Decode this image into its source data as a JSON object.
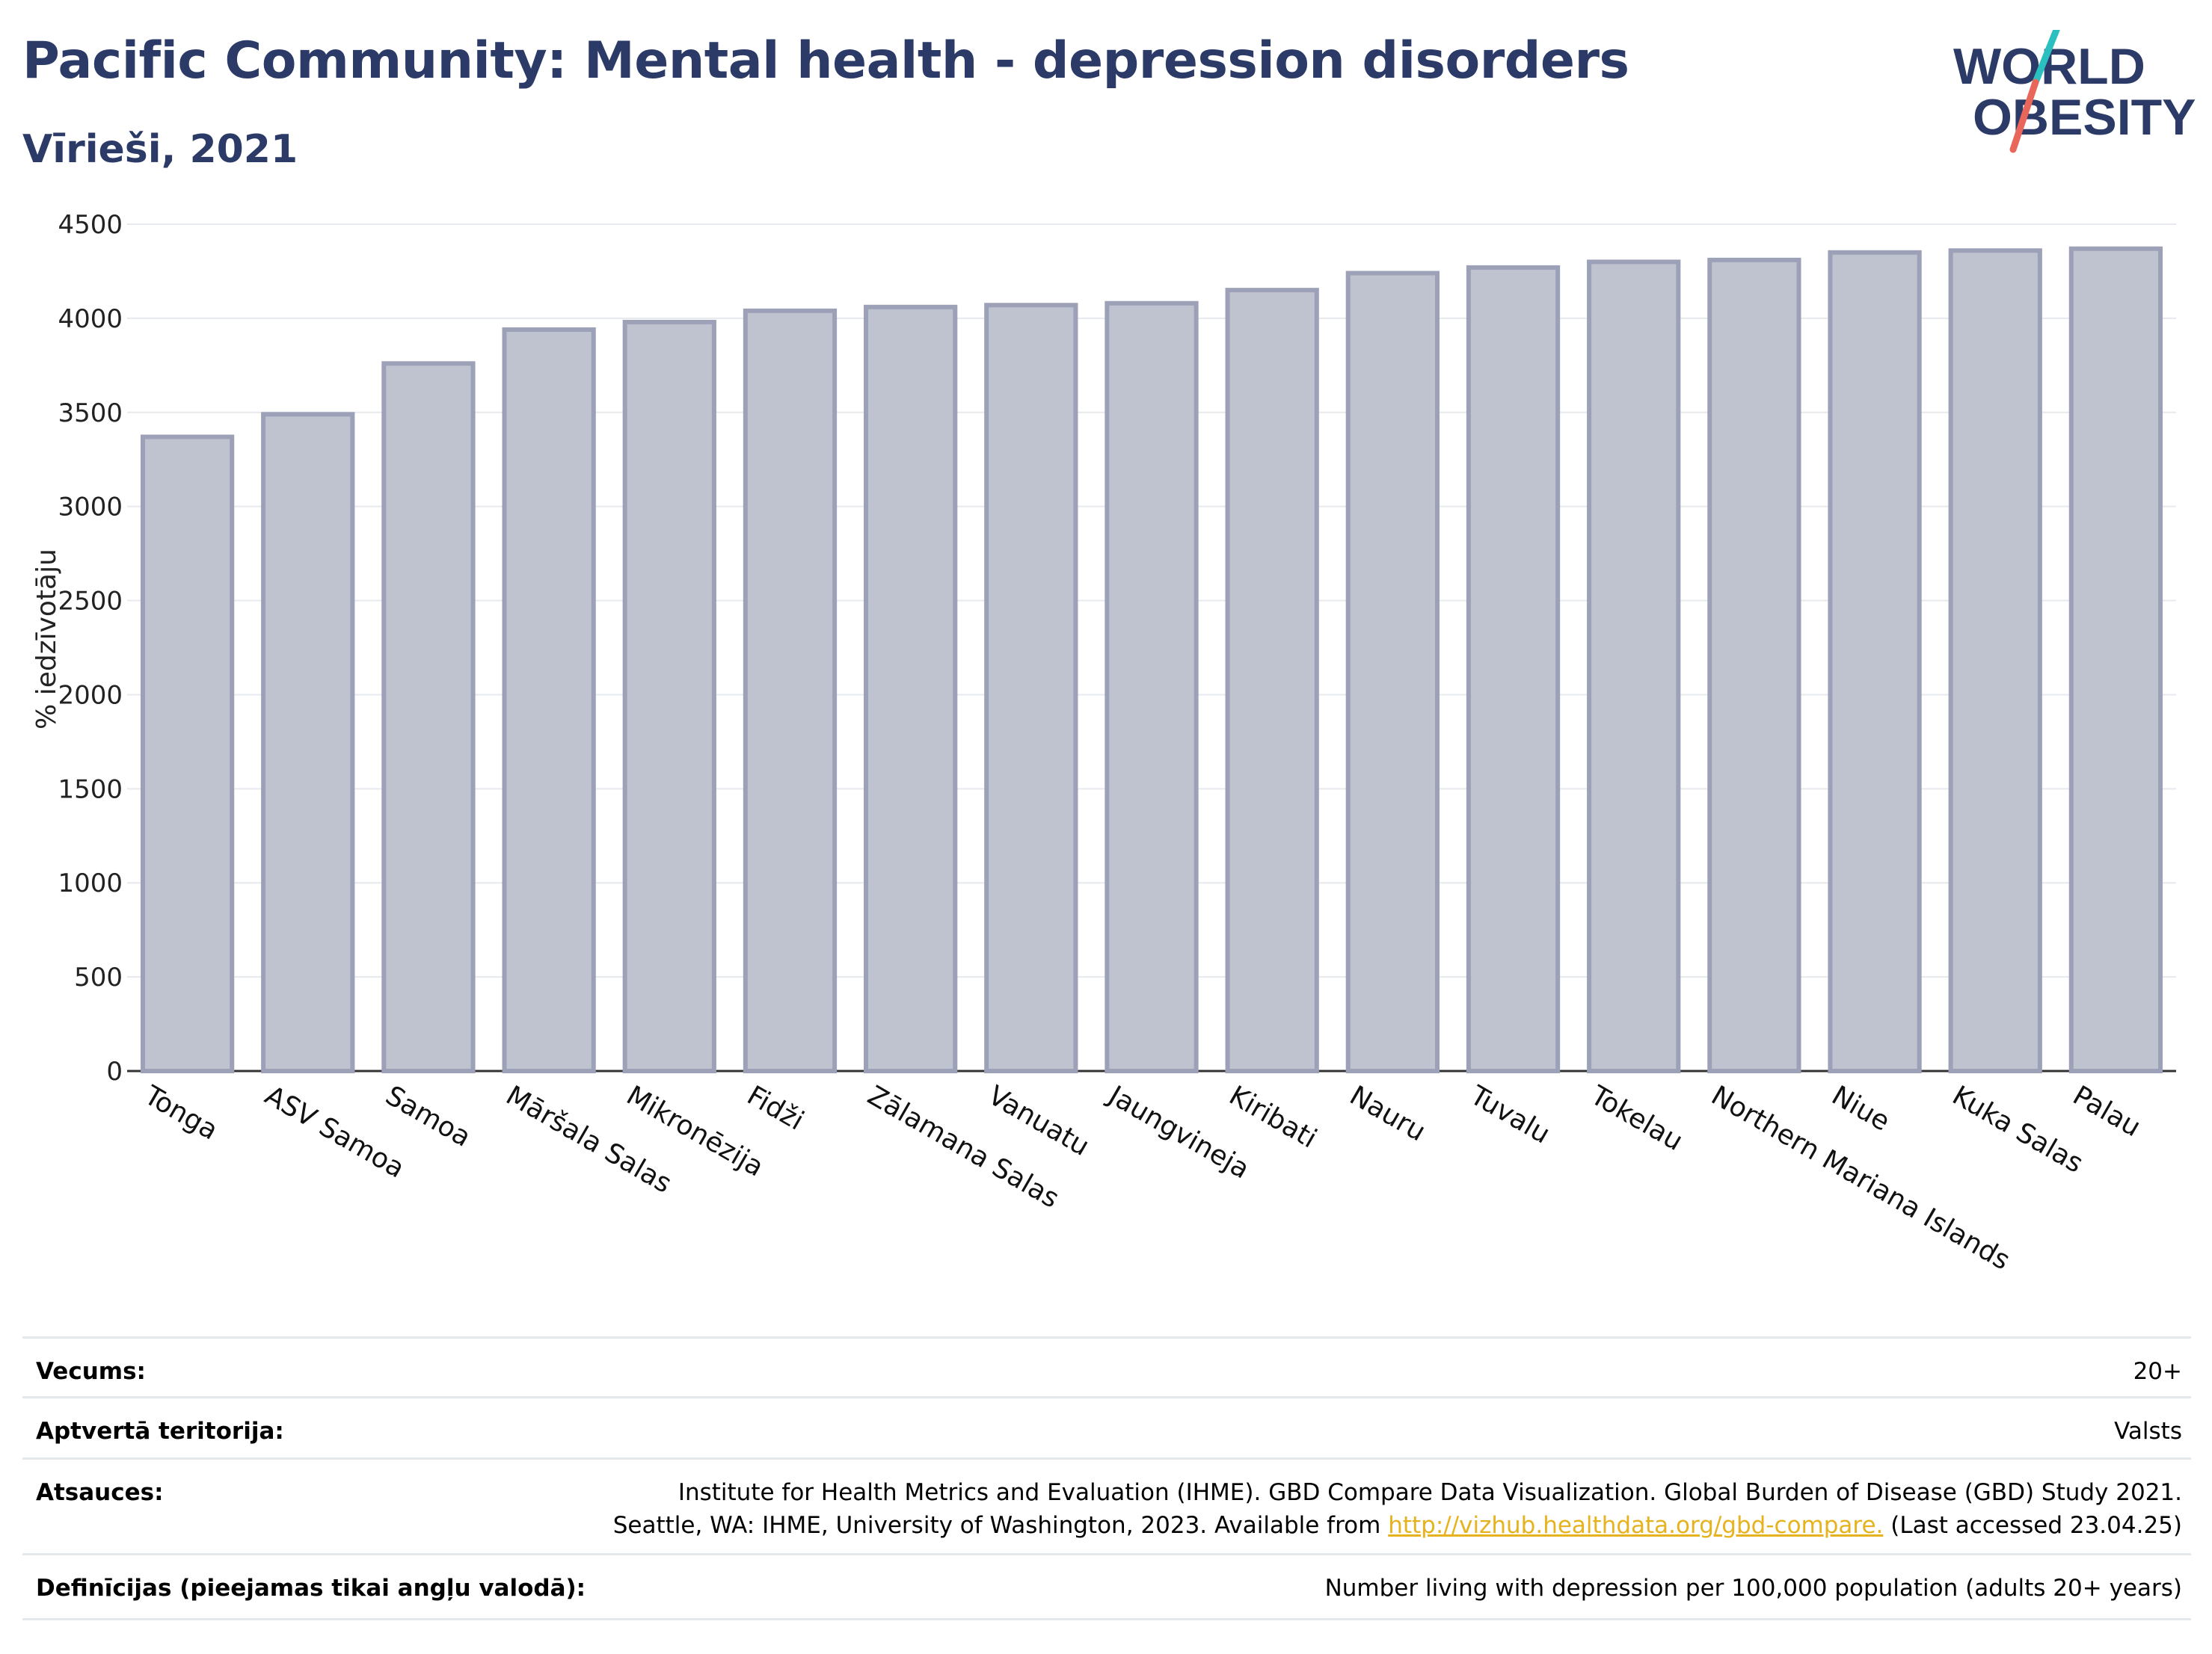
{
  "header": {
    "title": "Pacific Community: Mental health - depression disorders",
    "subtitle": "Vīrieši, 2021"
  },
  "logo": {
    "line1": "WORLD",
    "line2": "OBESITY",
    "colors": {
      "text": "#2b3a67",
      "slash_top": "#2bbfbf",
      "slash_bottom": "#e8675a"
    }
  },
  "chart_data": {
    "type": "bar",
    "title": "",
    "xlabel": "",
    "ylabel": "% iedzīvotāju",
    "ylim": [
      0,
      4500
    ],
    "yticks": [
      0,
      500,
      1000,
      1500,
      2000,
      2500,
      3000,
      3500,
      4000,
      4500
    ],
    "grid": true,
    "categories": [
      "Tonga",
      "ASV Samoa",
      "Samoa",
      "Māršala Salas",
      "Mikronēzija",
      "Fidži",
      "Zālamana Salas",
      "Vanuatu",
      "Jaungvineja",
      "Kiribati",
      "Nauru",
      "Tuvalu",
      "Tokelau",
      "Northern Mariana Islands",
      "Niue",
      "Kuka Salas",
      "Palau"
    ],
    "values": [
      3370,
      3490,
      3760,
      3940,
      3980,
      4040,
      4060,
      4070,
      4080,
      4150,
      4240,
      4270,
      4300,
      4310,
      4350,
      4360,
      4370
    ],
    "colors": {
      "bar_fill": "#bfc3d0",
      "bar_stroke": "#9ca1b8",
      "grid": "#e6e9ed",
      "axis": "#333333"
    }
  },
  "meta": {
    "rows": [
      {
        "label": "Vecums:",
        "value": "20+"
      },
      {
        "label": "Aptvertā teritorija:",
        "value": "Valsts"
      },
      {
        "label": "Atsauces:",
        "value_line1": "Institute for Health Metrics and Evaluation (IHME). GBD Compare Data Visualization. Global Burden of Disease (GBD) Study 2021.",
        "value_line2_pre": "Seattle, WA: IHME, University of Washington, 2023. Available from ",
        "value_link": "http://vizhub.healthdata.org/gbd-compare.",
        "value_line2_post": " (Last accessed 23.04.25)"
      },
      {
        "label": "Definīcijas (pieejamas tikai angļu valodā):",
        "value": "Number living with depression per 100,000 population (adults 20+ years)"
      }
    ]
  }
}
